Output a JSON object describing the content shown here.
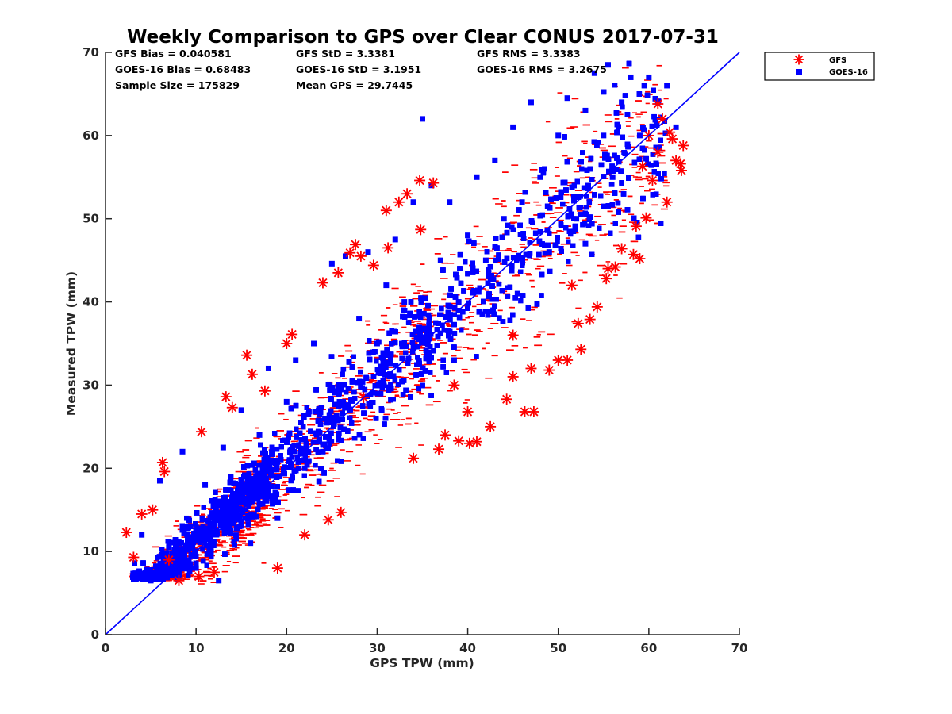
{
  "chart_data": {
    "type": "scatter",
    "title": "Weekly Comparison to GPS over Clear CONUS 2017-07-31",
    "xlabel": "GPS TPW (mm)",
    "ylabel": "Measured TPW (mm)",
    "xlim": [
      0,
      70
    ],
    "ylim": [
      0,
      70
    ],
    "x_ticks": [
      "0",
      "10",
      "20",
      "30",
      "40",
      "50",
      "60",
      "70"
    ],
    "y_ticks": [
      "0",
      "10",
      "20",
      "30",
      "40",
      "50",
      "60",
      "70"
    ],
    "grid": false,
    "legend_position": "top-right outside",
    "reference_line": {
      "from": [
        0,
        0
      ],
      "to": [
        70,
        70
      ],
      "color": "#0000ff"
    },
    "stats": {
      "gfs_bias": "GFS Bias = 0.040581",
      "goes_bias": "GOES-16 Bias = 0.68483",
      "sample_size": "Sample Size = 175829",
      "gfs_std": "GFS StD = 3.3381",
      "goes_std": "GOES-16 StD = 3.1951",
      "mean_gps": "Mean GPS = 29.7445",
      "gfs_rms": "GFS RMS = 3.3383",
      "goes_rms": "GOES-16 RMS = 3.2675"
    },
    "series": [
      {
        "name": "GFS",
        "marker": "asterisk",
        "color": "#ff0000",
        "points": [
          [
            2.3,
            12.3
          ],
          [
            3.1,
            9.3
          ],
          [
            4.0,
            14.5
          ],
          [
            5.2,
            15.0
          ],
          [
            6.3,
            20.7
          ],
          [
            6.5,
            19.6
          ],
          [
            7.0,
            9.0
          ],
          [
            8.1,
            6.5
          ],
          [
            10.6,
            24.4
          ],
          [
            10.3,
            7.0
          ],
          [
            12.0,
            7.5
          ],
          [
            13.3,
            28.6
          ],
          [
            14.0,
            27.3
          ],
          [
            15.6,
            33.6
          ],
          [
            16.2,
            31.3
          ],
          [
            17.6,
            29.3
          ],
          [
            19.0,
            8.0
          ],
          [
            20.0,
            35.0
          ],
          [
            20.6,
            36.1
          ],
          [
            22.0,
            12.0
          ],
          [
            24.0,
            42.3
          ],
          [
            24.6,
            13.8
          ],
          [
            25.7,
            43.5
          ],
          [
            26.0,
            14.7
          ],
          [
            27.6,
            46.9
          ],
          [
            27.0,
            45.9
          ],
          [
            28.2,
            45.5
          ],
          [
            29.6,
            44.4
          ],
          [
            28.5,
            28.5
          ],
          [
            31.2,
            46.5
          ],
          [
            31.0,
            51.0
          ],
          [
            32.4,
            52.0
          ],
          [
            33.3,
            53.0
          ],
          [
            34.8,
            48.7
          ],
          [
            34.7,
            54.6
          ],
          [
            34.0,
            21.2
          ],
          [
            36.2,
            54.3
          ],
          [
            36.8,
            22.3
          ],
          [
            37.5,
            24.0
          ],
          [
            39.0,
            23.3
          ],
          [
            40.2,
            23.0
          ],
          [
            40.0,
            26.8
          ],
          [
            41.0,
            23.2
          ],
          [
            42.5,
            25.0
          ],
          [
            44.3,
            28.3
          ],
          [
            45.0,
            31.0
          ],
          [
            46.3,
            26.8
          ],
          [
            47.3,
            26.8
          ],
          [
            47.0,
            32.0
          ],
          [
            49.0,
            31.8
          ],
          [
            50.0,
            33.0
          ],
          [
            51.0,
            33.0
          ],
          [
            52.2,
            37.4
          ],
          [
            52.5,
            34.3
          ],
          [
            53.5,
            37.9
          ],
          [
            54.3,
            39.4
          ],
          [
            55.3,
            42.8
          ],
          [
            56.3,
            44.2
          ],
          [
            57.0,
            46.4
          ],
          [
            58.3,
            45.7
          ],
          [
            59.0,
            45.2
          ],
          [
            58.6,
            49.1
          ],
          [
            59.7,
            50.1
          ],
          [
            59.3,
            56.3
          ],
          [
            60.4,
            54.6
          ],
          [
            61.0,
            58.0
          ],
          [
            62.0,
            52.0
          ],
          [
            62.3,
            60.4
          ],
          [
            63.0,
            57.0
          ],
          [
            63.6,
            55.8
          ],
          [
            63.5,
            56.6
          ],
          [
            63.8,
            58.8
          ],
          [
            62.6,
            59.6
          ],
          [
            61.5,
            62.0
          ],
          [
            61.0,
            63.8
          ],
          [
            60.0,
            60.0
          ],
          [
            55.5,
            44.0
          ],
          [
            51.5,
            42.0
          ],
          [
            45.0,
            36.0
          ],
          [
            38.5,
            30.0
          ]
        ]
      },
      {
        "name": "GOES-16",
        "marker": "square",
        "color": "#0000ff",
        "points": [
          [
            3.2,
            8.6
          ],
          [
            4.0,
            12.0
          ],
          [
            5.0,
            6.5
          ],
          [
            6.0,
            18.5
          ],
          [
            7.0,
            10.5
          ],
          [
            8.5,
            22.0
          ],
          [
            9.0,
            12.0
          ],
          [
            10.0,
            8.0
          ],
          [
            11.0,
            18.0
          ],
          [
            12.5,
            6.5
          ],
          [
            13.0,
            22.5
          ],
          [
            14.5,
            16.0
          ],
          [
            15.0,
            27.0
          ],
          [
            16.0,
            11.0
          ],
          [
            17.0,
            24.0
          ],
          [
            18.0,
            32.0
          ],
          [
            19.0,
            14.0
          ],
          [
            20.0,
            28.0
          ],
          [
            21.0,
            33.0
          ],
          [
            22.0,
            20.0
          ],
          [
            23.0,
            35.0
          ],
          [
            24.0,
            22.0
          ],
          [
            25.0,
            44.6
          ],
          [
            25.8,
            30.0
          ],
          [
            26.5,
            45.5
          ],
          [
            27.0,
            27.0
          ],
          [
            28.0,
            38.0
          ],
          [
            29.0,
            46.0
          ],
          [
            30.0,
            35.0
          ],
          [
            31.0,
            42.0
          ],
          [
            31.5,
            30.0
          ],
          [
            32.0,
            47.5
          ],
          [
            33.0,
            40.0
          ],
          [
            34.0,
            52.0
          ],
          [
            35.0,
            62.0
          ],
          [
            35.5,
            36.0
          ],
          [
            36.0,
            54.0
          ],
          [
            37.0,
            45.0
          ],
          [
            38.0,
            52.0
          ],
          [
            39.0,
            40.0
          ],
          [
            40.0,
            48.0
          ],
          [
            41.0,
            55.0
          ],
          [
            42.0,
            45.0
          ],
          [
            43.0,
            57.0
          ],
          [
            44.0,
            50.0
          ],
          [
            45.0,
            61.0
          ],
          [
            46.0,
            52.0
          ],
          [
            47.0,
            64.0
          ],
          [
            48.0,
            55.0
          ],
          [
            49.0,
            46.0
          ],
          [
            50.0,
            60.0
          ],
          [
            51.0,
            64.5
          ],
          [
            52.0,
            50.0
          ],
          [
            53.0,
            63.0
          ],
          [
            54.0,
            67.5
          ],
          [
            55.0,
            60.0
          ],
          [
            55.5,
            68.5
          ],
          [
            56.0,
            55.0
          ],
          [
            57.0,
            64.0
          ],
          [
            58.0,
            67.0
          ],
          [
            59.0,
            60.0
          ],
          [
            59.5,
            66.0
          ],
          [
            60.0,
            67.0
          ],
          [
            61.0,
            64.0
          ],
          [
            62.0,
            66.0
          ],
          [
            63.0,
            61.0
          ],
          [
            53.0,
            47.0
          ],
          [
            45.5,
            41.0
          ],
          [
            38.5,
            33.0
          ],
          [
            30.5,
            27.0
          ]
        ]
      }
    ]
  }
}
